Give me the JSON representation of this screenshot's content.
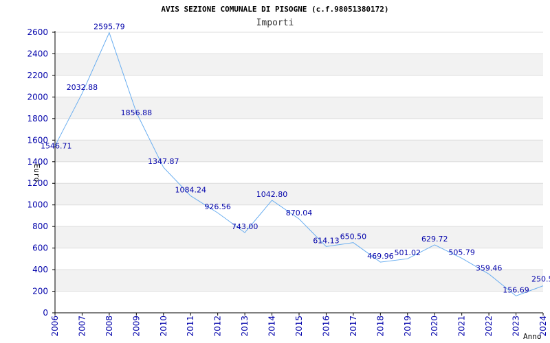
{
  "chart_data": {
    "type": "line",
    "title": "AVIS SEZIONE COMUNALE DI PISOGNE (c.f.98051380172)",
    "subtitle": "Importi",
    "xlabel": "Anno",
    "ylabel": "Euro",
    "x": [
      "2006",
      "2007",
      "2008",
      "2009",
      "2010",
      "2011",
      "2012",
      "2013",
      "2014",
      "2015",
      "2016",
      "2017",
      "2018",
      "2019",
      "2020",
      "2021",
      "2022",
      "2023",
      "2024"
    ],
    "values": [
      1546.71,
      2032.88,
      2595.79,
      1856.88,
      1347.87,
      1084.24,
      926.56,
      743.0,
      1042.8,
      870.04,
      614.13,
      650.5,
      469.96,
      501.02,
      629.72,
      505.79,
      359.46,
      156.69,
      250.5
    ],
    "data_labels": [
      "1546.71",
      "2032.88",
      "2595.79",
      "1856.88",
      "1347.87",
      "1084.24",
      "926.56",
      "743.00",
      "1042.80",
      "870.04",
      "614.13",
      "650.50",
      "469.96",
      "501.02",
      "629.72",
      "505.79",
      "359.46",
      "156.69",
      "250.5"
    ],
    "ylim": [
      0,
      2600
    ],
    "yticks": [
      "0",
      "200",
      "400",
      "600",
      "800",
      "1000",
      "1200",
      "1400",
      "1600",
      "1800",
      "2000",
      "2200",
      "2400",
      "2600"
    ],
    "grid": true,
    "line_color": "#6aaef0",
    "band_color": "#f2f2f2",
    "tick_color": "#0000aa"
  }
}
